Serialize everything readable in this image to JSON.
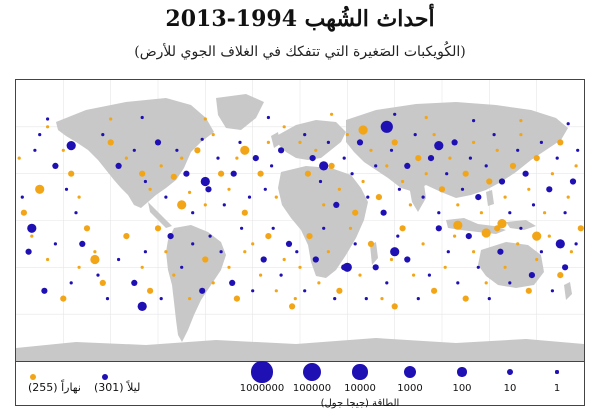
{
  "title": "أحداث الشُهب 1994-2013",
  "subtitle": "(الكُويكبات الصَغيرة التي تتفكك في الغلاف الجوي للأرض)",
  "colors": {
    "day": "#f2a516",
    "night": "#1f10b4",
    "land": "#c8c8c8",
    "ocean": "#ffffff",
    "grid": "#e6e6e6"
  },
  "legend": {
    "day_label": "نهاراً (255)",
    "night_label": "ليلاً (301)",
    "energy_title": "الطاقة (جيجا جول)",
    "energy_scale": [
      "1000000",
      "100000",
      "10000",
      "1000",
      "100",
      "10",
      "1"
    ]
  },
  "chart_data": {
    "type": "scatter",
    "title": "أحداث الشُهب 1994-2013",
    "series": [
      {
        "name": "نهاراً (255)",
        "color": "#f2a516",
        "points": [
          [
            -160,
            60,
            1
          ],
          [
            -150,
            45,
            1
          ],
          [
            -145,
            30,
            10
          ],
          [
            -140,
            15,
            1
          ],
          [
            -135,
            -5,
            10
          ],
          [
            -130,
            -20,
            1
          ],
          [
            -125,
            -40,
            10
          ],
          [
            -170,
            -10,
            1
          ],
          [
            -175,
            5,
            10
          ],
          [
            -178,
            40,
            1
          ],
          [
            -120,
            50,
            10
          ],
          [
            -110,
            40,
            1
          ],
          [
            -100,
            30,
            10
          ],
          [
            -95,
            20,
            1
          ],
          [
            -88,
            35,
            1
          ],
          [
            -80,
            28,
            10
          ],
          [
            -75,
            40,
            1
          ],
          [
            -70,
            18,
            1
          ],
          [
            -65,
            45,
            10
          ],
          [
            -60,
            10,
            1
          ],
          [
            -55,
            55,
            1
          ],
          [
            -50,
            30,
            10
          ],
          [
            -45,
            20,
            1
          ],
          [
            -40,
            40,
            1
          ],
          [
            -35,
            5,
            10
          ],
          [
            -30,
            -15,
            1
          ],
          [
            -25,
            30,
            10
          ],
          [
            -20,
            50,
            1
          ],
          [
            -15,
            15,
            1
          ],
          [
            -10,
            60,
            1
          ],
          [
            -140,
            -30,
            1
          ],
          [
            -150,
            -50,
            10
          ],
          [
            -160,
            -25,
            1
          ],
          [
            -110,
            -10,
            10
          ],
          [
            -100,
            -30,
            1
          ],
          [
            -95,
            -45,
            10
          ],
          [
            -85,
            -20,
            1
          ],
          [
            -80,
            -35,
            1
          ],
          [
            -90,
            -5,
            10
          ],
          [
            -70,
            -50,
            1
          ],
          [
            -60,
            -25,
            10
          ],
          [
            -55,
            -40,
            1
          ],
          [
            -45,
            -30,
            1
          ],
          [
            -40,
            -50,
            10
          ],
          [
            -35,
            -20,
            1
          ],
          [
            -25,
            -35,
            1
          ],
          [
            -20,
            -10,
            10
          ],
          [
            -15,
            -45,
            1
          ],
          [
            -10,
            -25,
            1
          ],
          [
            -5,
            -55,
            10
          ],
          [
            0,
            50,
            1
          ],
          [
            5,
            30,
            10
          ],
          [
            10,
            45,
            1
          ],
          [
            15,
            10,
            1
          ],
          [
            20,
            35,
            10
          ],
          [
            25,
            20,
            1
          ],
          [
            30,
            55,
            1
          ],
          [
            35,
            5,
            10
          ],
          [
            40,
            25,
            1
          ],
          [
            45,
            45,
            1
          ],
          [
            50,
            15,
            10
          ],
          [
            55,
            35,
            1
          ],
          [
            60,
            50,
            10
          ],
          [
            65,
            25,
            1
          ],
          [
            70,
            10,
            1
          ],
          [
            75,
            40,
            10
          ],
          [
            80,
            30,
            1
          ],
          [
            85,
            55,
            1
          ],
          [
            90,
            20,
            10
          ],
          [
            95,
            40,
            1
          ],
          [
            100,
            10,
            1
          ],
          [
            105,
            30,
            10
          ],
          [
            110,
            50,
            1
          ],
          [
            115,
            5,
            1
          ],
          [
            120,
            25,
            10
          ],
          [
            125,
            45,
            1
          ],
          [
            130,
            15,
            1
          ],
          [
            135,
            35,
            10
          ],
          [
            140,
            55,
            1
          ],
          [
            145,
            20,
            1
          ],
          [
            150,
            40,
            10
          ],
          [
            155,
            5,
            1
          ],
          [
            160,
            30,
            1
          ],
          [
            165,
            50,
            10
          ],
          [
            170,
            15,
            1
          ],
          [
            175,
            35,
            1
          ],
          [
            178,
            -5,
            10
          ],
          [
            172,
            -20,
            1
          ],
          [
            165,
            -35,
            10
          ],
          [
            158,
            -10,
            1
          ],
          [
            150,
            -25,
            1
          ],
          [
            145,
            -45,
            10
          ],
          [
            138,
            -15,
            1
          ],
          [
            130,
            -30,
            1
          ],
          [
            125,
            -5,
            10
          ],
          [
            118,
            -40,
            1
          ],
          [
            110,
            -20,
            1
          ],
          [
            105,
            -50,
            10
          ],
          [
            98,
            -10,
            1
          ],
          [
            92,
            -30,
            1
          ],
          [
            85,
            -45,
            10
          ],
          [
            78,
            -15,
            1
          ],
          [
            72,
            -35,
            1
          ],
          [
            65,
            -5,
            10
          ],
          [
            58,
            -25,
            1
          ],
          [
            52,
            -50,
            1
          ],
          [
            45,
            -15,
            10
          ],
          [
            38,
            -35,
            1
          ],
          [
            32,
            -5,
            1
          ],
          [
            25,
            -45,
            10
          ],
          [
            18,
            -20,
            1
          ],
          [
            12,
            -40,
            1
          ],
          [
            6,
            -10,
            10
          ],
          [
            0,
            -30,
            1
          ],
          [
            -3,
            -50,
            1
          ],
          [
            100,
            -3,
            100
          ],
          [
            118,
            -8,
            100
          ],
          [
            128,
            -2,
            100
          ],
          [
            -130,
            -25,
            100
          ],
          [
            -165,
            20,
            100
          ],
          [
            -35,
            45,
            100
          ],
          [
            40,
            58,
            100
          ],
          [
            150,
            -10,
            100
          ],
          [
            -75,
            10,
            100
          ],
          [
            60,
            -55,
            10
          ],
          [
            -120,
            65,
            1
          ],
          [
            -60,
            65,
            1
          ],
          [
            20,
            68,
            1
          ],
          [
            80,
            66,
            1
          ],
          [
            140,
            64,
            1
          ]
        ]
      },
      {
        "name": "ليلاً (301)",
        "color": "#1f10b4",
        "points": [
          [
            -165,
            55,
            1
          ],
          [
            -155,
            35,
            10
          ],
          [
            -148,
            20,
            1
          ],
          [
            -142,
            5,
            1
          ],
          [
            -138,
            -15,
            10
          ],
          [
            -128,
            -35,
            1
          ],
          [
            -122,
            -50,
            1
          ],
          [
            -172,
            -20,
            10
          ],
          [
            -176,
            15,
            1
          ],
          [
            -168,
            45,
            1
          ],
          [
            -125,
            55,
            1
          ],
          [
            -115,
            35,
            10
          ],
          [
            -105,
            45,
            1
          ],
          [
            -98,
            25,
            1
          ],
          [
            -90,
            50,
            10
          ],
          [
            -85,
            15,
            1
          ],
          [
            -78,
            45,
            1
          ],
          [
            -72,
            30,
            10
          ],
          [
            -68,
            5,
            1
          ],
          [
            -62,
            52,
            1
          ],
          [
            -58,
            20,
            10
          ],
          [
            -52,
            40,
            1
          ],
          [
            -48,
            10,
            1
          ],
          [
            -42,
            30,
            10
          ],
          [
            -38,
            50,
            1
          ],
          [
            -32,
            15,
            1
          ],
          [
            -28,
            40,
            10
          ],
          [
            -22,
            20,
            1
          ],
          [
            -18,
            35,
            1
          ],
          [
            -12,
            45,
            10
          ],
          [
            -145,
            -40,
            1
          ],
          [
            -155,
            -15,
            1
          ],
          [
            -162,
            -45,
            10
          ],
          [
            -115,
            -25,
            1
          ],
          [
            -105,
            -40,
            10
          ],
          [
            -98,
            -20,
            1
          ],
          [
            -88,
            -50,
            1
          ],
          [
            -82,
            -10,
            10
          ],
          [
            -75,
            -30,
            1
          ],
          [
            -68,
            -15,
            1
          ],
          [
            -62,
            -45,
            10
          ],
          [
            -57,
            -10,
            1
          ],
          [
            -50,
            -20,
            1
          ],
          [
            -43,
            -40,
            10
          ],
          [
            -37,
            -5,
            1
          ],
          [
            -30,
            -45,
            1
          ],
          [
            -23,
            -25,
            10
          ],
          [
            -17,
            -5,
            1
          ],
          [
            -12,
            -35,
            1
          ],
          [
            -7,
            -15,
            10
          ],
          [
            3,
            55,
            1
          ],
          [
            8,
            40,
            10
          ],
          [
            13,
            25,
            1
          ],
          [
            18,
            50,
            1
          ],
          [
            23,
            10,
            10
          ],
          [
            28,
            40,
            1
          ],
          [
            33,
            30,
            1
          ],
          [
            38,
            50,
            10
          ],
          [
            43,
            15,
            1
          ],
          [
            48,
            35,
            1
          ],
          [
            53,
            5,
            10
          ],
          [
            58,
            45,
            1
          ],
          [
            63,
            20,
            1
          ],
          [
            68,
            35,
            10
          ],
          [
            73,
            55,
            1
          ],
          [
            78,
            15,
            1
          ],
          [
            83,
            40,
            10
          ],
          [
            88,
            5,
            1
          ],
          [
            93,
            30,
            1
          ],
          [
            98,
            50,
            10
          ],
          [
            103,
            20,
            1
          ],
          [
            108,
            40,
            1
          ],
          [
            113,
            15,
            10
          ],
          [
            118,
            35,
            1
          ],
          [
            123,
            55,
            1
          ],
          [
            128,
            25,
            10
          ],
          [
            133,
            5,
            1
          ],
          [
            138,
            45,
            1
          ],
          [
            143,
            30,
            10
          ],
          [
            148,
            10,
            1
          ],
          [
            153,
            50,
            1
          ],
          [
            158,
            20,
            10
          ],
          [
            163,
            40,
            1
          ],
          [
            168,
            5,
            1
          ],
          [
            173,
            25,
            10
          ],
          [
            176,
            45,
            1
          ],
          [
            175,
            -15,
            1
          ],
          [
            168,
            -30,
            10
          ],
          [
            160,
            -45,
            1
          ],
          [
            153,
            -20,
            1
          ],
          [
            147,
            -35,
            10
          ],
          [
            140,
            -5,
            1
          ],
          [
            133,
            -40,
            1
          ],
          [
            127,
            -20,
            10
          ],
          [
            120,
            -50,
            1
          ],
          [
            113,
            -30,
            1
          ],
          [
            107,
            -10,
            10
          ],
          [
            100,
            -40,
            1
          ],
          [
            94,
            -20,
            1
          ],
          [
            88,
            -5,
            10
          ],
          [
            82,
            -35,
            1
          ],
          [
            75,
            -50,
            1
          ],
          [
            68,
            -25,
            10
          ],
          [
            62,
            -10,
            1
          ],
          [
            55,
            -40,
            1
          ],
          [
            48,
            -30,
            10
          ],
          [
            42,
            -50,
            1
          ],
          [
            35,
            -15,
            1
          ],
          [
            28,
            -30,
            10
          ],
          [
            22,
            -50,
            1
          ],
          [
            15,
            -5,
            1
          ],
          [
            10,
            -25,
            10
          ],
          [
            3,
            -45,
            1
          ],
          [
            -2,
            -20,
            1
          ],
          [
            -145,
            48,
            100
          ],
          [
            15,
            35,
            100
          ],
          [
            55,
            60,
            1000
          ],
          [
            -60,
            25,
            100
          ],
          [
            60,
            -20,
            100
          ],
          [
            30,
            -30,
            100
          ],
          [
            -170,
            -5,
            100
          ],
          [
            88,
            48,
            100
          ],
          [
            -100,
            -55,
            100
          ],
          [
            165,
            -15,
            100
          ],
          [
            -160,
            65,
            1
          ],
          [
            -100,
            66,
            1
          ],
          [
            -20,
            66,
            1
          ],
          [
            60,
            68,
            1
          ],
          [
            110,
            64,
            1
          ],
          [
            170,
            62,
            1
          ]
        ]
      }
    ]
  }
}
